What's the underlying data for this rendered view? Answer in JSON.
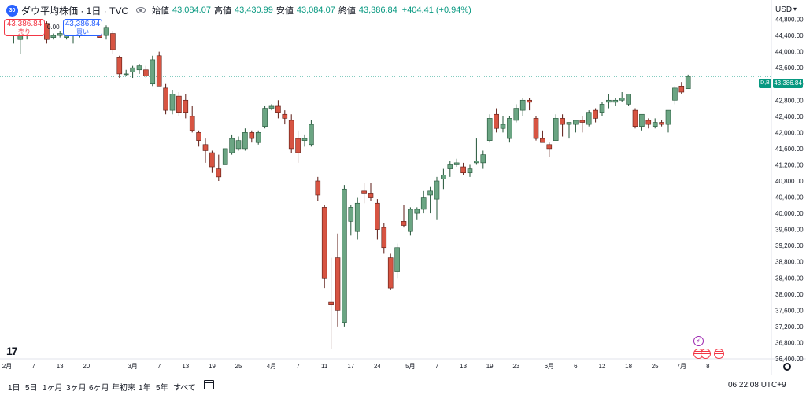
{
  "symbol": {
    "badge": "30",
    "title": "ダウ平均株価 · 1日 · TVC",
    "open_label": "始値",
    "open_value": "43,084.07",
    "high_label": "高値",
    "high_value": "43,430.99",
    "low_label": "安値",
    "low_value": "43,084.07",
    "close_label": "終値",
    "close_value": "43,386.84",
    "change": "+404.41 (+0.94%)"
  },
  "trade": {
    "sell_price": "43,386.84",
    "sell_label": "売り",
    "spread": "0.00",
    "buy_price": "43,386.84",
    "buy_label": "買い"
  },
  "axis": {
    "currency": "USD",
    "currency_chevron": "▾",
    "last_price": "43,386.84",
    "db_tag": "D,B"
  },
  "time_ranges": [
    "1日",
    "5日",
    "1ヶ月",
    "3ヶ月",
    "6ヶ月",
    "年初来",
    "1年",
    "5年",
    "すべて"
  ],
  "clock": "06:22:08 UTC+9",
  "logo": "17",
  "events": {
    "flash": "⚡"
  },
  "colors": {
    "up": "#6ba583",
    "down": "#d75442",
    "last_price_tag": "#089981",
    "grid_text": "#131722",
    "accent": "#2962ff"
  },
  "chart_data": {
    "type": "candlestick",
    "title": "ダウ平均株価",
    "xlabel": "",
    "ylabel": "",
    "ylim": [
      36400,
      45200
    ],
    "y_ticks": [
      36400,
      36800,
      37200,
      37600,
      38000,
      38400,
      38800,
      39200,
      39600,
      40000,
      40400,
      40800,
      41200,
      41600,
      42000,
      42400,
      42800,
      43200,
      43600,
      44000,
      44400,
      44800
    ],
    "y_tick_labels": [
      "36,400.00",
      "36,800.00",
      "37,200.00",
      "37,600.00",
      "38,000.00",
      "38,400.00",
      "38,800.00",
      "39,200.00",
      "39,600.00",
      "40,000.00",
      "40,400.00",
      "40,800.00",
      "41,200.00",
      "41,600.00",
      "42,000.00",
      "42,400.00",
      "42,800.00",
      "43,200.00",
      "43,600.00",
      "44,000.00",
      "44,400.00",
      "44,800.00"
    ],
    "x_labels": [
      {
        "label": "2月",
        "index": 0
      },
      {
        "label": "7",
        "index": 4
      },
      {
        "label": "13",
        "index": 8
      },
      {
        "label": "20",
        "index": 12
      },
      {
        "label": "3月",
        "index": 19
      },
      {
        "label": "7",
        "index": 23
      },
      {
        "label": "13",
        "index": 27
      },
      {
        "label": "19",
        "index": 31
      },
      {
        "label": "25",
        "index": 35
      },
      {
        "label": "4月",
        "index": 40
      },
      {
        "label": "7",
        "index": 44
      },
      {
        "label": "11",
        "index": 48
      },
      {
        "label": "17",
        "index": 52
      },
      {
        "label": "24",
        "index": 56
      },
      {
        "label": "5月",
        "index": 61
      },
      {
        "label": "7",
        "index": 65
      },
      {
        "label": "13",
        "index": 69
      },
      {
        "label": "19",
        "index": 73
      },
      {
        "label": "23",
        "index": 77
      },
      {
        "label": "6月",
        "index": 82
      },
      {
        "label": "6",
        "index": 86
      },
      {
        "label": "12",
        "index": 90
      },
      {
        "label": "18",
        "index": 94
      },
      {
        "label": "25",
        "index": 98
      },
      {
        "label": "7月",
        "index": 102
      },
      {
        "label": "8",
        "index": 106
      }
    ],
    "last_price": 43386.84,
    "candles": [
      {
        "o": 44550,
        "h": 44700,
        "l": 44400,
        "c": 44650
      },
      {
        "o": 44500,
        "h": 44600,
        "l": 44200,
        "c": 44600
      },
      {
        "o": 44300,
        "h": 44500,
        "l": 43950,
        "c": 44400
      },
      {
        "o": 44400,
        "h": 44650,
        "l": 44300,
        "c": 44500
      },
      {
        "o": 44550,
        "h": 44800,
        "l": 44450,
        "c": 44600
      },
      {
        "o": 44450,
        "h": 44700,
        "l": 44400,
        "c": 44700
      },
      {
        "o": 44700,
        "h": 44750,
        "l": 44200,
        "c": 44300
      },
      {
        "o": 44350,
        "h": 44450,
        "l": 44300,
        "c": 44400
      },
      {
        "o": 44400,
        "h": 44500,
        "l": 44350,
        "c": 44450
      },
      {
        "o": 44350,
        "h": 44600,
        "l": 44300,
        "c": 44550
      },
      {
        "o": 44450,
        "h": 44450,
        "l": 44200,
        "c": 44450
      },
      {
        "o": 44400,
        "h": 44700,
        "l": 44350,
        "c": 44600
      },
      {
        "o": 44550,
        "h": 44650,
        "l": 44400,
        "c": 44650
      },
      {
        "o": 44600,
        "h": 44650,
        "l": 44450,
        "c": 44550
      },
      {
        "o": 44650,
        "h": 44750,
        "l": 44350,
        "c": 44350
      },
      {
        "o": 44400,
        "h": 44650,
        "l": 44300,
        "c": 44600
      },
      {
        "o": 44450,
        "h": 44500,
        "l": 43950,
        "c": 44050
      },
      {
        "o": 43850,
        "h": 43900,
        "l": 43350,
        "c": 43450
      },
      {
        "o": 43450,
        "h": 43550,
        "l": 43400,
        "c": 43450
      },
      {
        "o": 43500,
        "h": 43650,
        "l": 43350,
        "c": 43600
      },
      {
        "o": 43550,
        "h": 43700,
        "l": 43450,
        "c": 43650
      },
      {
        "o": 43550,
        "h": 43650,
        "l": 43350,
        "c": 43400
      },
      {
        "o": 43200,
        "h": 43900,
        "l": 43150,
        "c": 43800
      },
      {
        "o": 43900,
        "h": 44000,
        "l": 43200,
        "c": 43150
      },
      {
        "o": 43100,
        "h": 43200,
        "l": 42450,
        "c": 42550
      },
      {
        "o": 42550,
        "h": 43050,
        "l": 42450,
        "c": 42950
      },
      {
        "o": 42900,
        "h": 43000,
        "l": 42400,
        "c": 42500
      },
      {
        "o": 42800,
        "h": 42950,
        "l": 42350,
        "c": 42500
      },
      {
        "o": 42400,
        "h": 42650,
        "l": 42000,
        "c": 42050
      },
      {
        "o": 42000,
        "h": 42050,
        "l": 41650,
        "c": 41800
      },
      {
        "o": 41700,
        "h": 41850,
        "l": 41250,
        "c": 41550
      },
      {
        "o": 41500,
        "h": 41550,
        "l": 41000,
        "c": 41150
      },
      {
        "o": 41100,
        "h": 41450,
        "l": 40800,
        "c": 40900
      },
      {
        "o": 41200,
        "h": 41600,
        "l": 41200,
        "c": 41600
      },
      {
        "o": 41500,
        "h": 41950,
        "l": 41450,
        "c": 41850
      },
      {
        "o": 41600,
        "h": 41900,
        "l": 41550,
        "c": 41800
      },
      {
        "o": 41600,
        "h": 42100,
        "l": 41550,
        "c": 42000
      },
      {
        "o": 42000,
        "h": 42050,
        "l": 41750,
        "c": 41850
      },
      {
        "o": 41750,
        "h": 42050,
        "l": 41700,
        "c": 42000
      },
      {
        "o": 42150,
        "h": 42650,
        "l": 42100,
        "c": 42600
      },
      {
        "o": 42600,
        "h": 42700,
        "l": 42550,
        "c": 42650
      },
      {
        "o": 42650,
        "h": 42800,
        "l": 42350,
        "c": 42500
      },
      {
        "o": 42450,
        "h": 42550,
        "l": 42200,
        "c": 42350
      },
      {
        "o": 42300,
        "h": 42450,
        "l": 41500,
        "c": 41600
      },
      {
        "o": 41850,
        "h": 42050,
        "l": 41250,
        "c": 41500
      },
      {
        "o": 41800,
        "h": 41950,
        "l": 41650,
        "c": 41850
      },
      {
        "o": 41700,
        "h": 42300,
        "l": 41650,
        "c": 42200
      },
      {
        "o": 40800,
        "h": 40900,
        "l": 40300,
        "c": 40450
      },
      {
        "o": 40150,
        "h": 40200,
        "l": 38150,
        "c": 38400
      },
      {
        "o": 37800,
        "h": 38900,
        "l": 36650,
        "c": 37750
      },
      {
        "o": 38900,
        "h": 39500,
        "l": 37200,
        "c": 37600
      },
      {
        "o": 37300,
        "h": 40700,
        "l": 37200,
        "c": 40600
      },
      {
        "o": 39800,
        "h": 40200,
        "l": 39450,
        "c": 40150
      },
      {
        "o": 39550,
        "h": 40400,
        "l": 39350,
        "c": 40250
      },
      {
        "o": 40550,
        "h": 40750,
        "l": 40250,
        "c": 40500
      },
      {
        "o": 40500,
        "h": 40750,
        "l": 40300,
        "c": 40400
      },
      {
        "o": 40250,
        "h": 40350,
        "l": 39350,
        "c": 39600
      },
      {
        "o": 39650,
        "h": 39750,
        "l": 39000,
        "c": 39150
      },
      {
        "o": 38900,
        "h": 39000,
        "l": 38100,
        "c": 38150
      },
      {
        "o": 38550,
        "h": 39250,
        "l": 38400,
        "c": 39150
      },
      {
        "o": 39800,
        "h": 40200,
        "l": 39650,
        "c": 39700
      },
      {
        "o": 39550,
        "h": 40150,
        "l": 39450,
        "c": 40100
      },
      {
        "o": 40000,
        "h": 40150,
        "l": 39850,
        "c": 40100
      },
      {
        "o": 40100,
        "h": 40550,
        "l": 40000,
        "c": 40400
      },
      {
        "o": 40450,
        "h": 40650,
        "l": 40000,
        "c": 40550
      },
      {
        "o": 40350,
        "h": 40900,
        "l": 39850,
        "c": 40800
      },
      {
        "o": 40850,
        "h": 41100,
        "l": 40600,
        "c": 40950
      },
      {
        "o": 41100,
        "h": 41300,
        "l": 40900,
        "c": 41200
      },
      {
        "o": 41200,
        "h": 41350,
        "l": 41150,
        "c": 41250
      },
      {
        "o": 41150,
        "h": 41250,
        "l": 40950,
        "c": 41000
      },
      {
        "o": 41000,
        "h": 41200,
        "l": 40900,
        "c": 41100
      },
      {
        "o": 41250,
        "h": 41850,
        "l": 41200,
        "c": 41300
      },
      {
        "o": 41250,
        "h": 41550,
        "l": 41100,
        "c": 41450
      },
      {
        "o": 41800,
        "h": 42450,
        "l": 41750,
        "c": 42350
      },
      {
        "o": 42450,
        "h": 42600,
        "l": 42000,
        "c": 42100
      },
      {
        "o": 42100,
        "h": 42400,
        "l": 42000,
        "c": 42200
      },
      {
        "o": 41850,
        "h": 42400,
        "l": 41750,
        "c": 42350
      },
      {
        "o": 42300,
        "h": 42700,
        "l": 42250,
        "c": 42600
      },
      {
        "o": 42550,
        "h": 42850,
        "l": 42400,
        "c": 42800
      },
      {
        "o": 42800,
        "h": 42850,
        "l": 42550,
        "c": 42750
      },
      {
        "o": 42350,
        "h": 42400,
        "l": 41800,
        "c": 41850
      },
      {
        "o": 41850,
        "h": 42050,
        "l": 41750,
        "c": 41750
      },
      {
        "o": 41700,
        "h": 41750,
        "l": 41400,
        "c": 41600
      },
      {
        "o": 41800,
        "h": 42450,
        "l": 41800,
        "c": 42350
      },
      {
        "o": 42350,
        "h": 42450,
        "l": 41900,
        "c": 42200
      },
      {
        "o": 42200,
        "h": 42250,
        "l": 41850,
        "c": 42250
      },
      {
        "o": 42200,
        "h": 42300,
        "l": 42000,
        "c": 42300
      },
      {
        "o": 42300,
        "h": 42400,
        "l": 42000,
        "c": 42250
      },
      {
        "o": 42200,
        "h": 42550,
        "l": 42150,
        "c": 42500
      },
      {
        "o": 42550,
        "h": 42600,
        "l": 42250,
        "c": 42350
      },
      {
        "o": 42500,
        "h": 42750,
        "l": 42400,
        "c": 42700
      },
      {
        "o": 42750,
        "h": 42950,
        "l": 42600,
        "c": 42800
      },
      {
        "o": 42750,
        "h": 42850,
        "l": 42650,
        "c": 42800
      },
      {
        "o": 42800,
        "h": 43000,
        "l": 42750,
        "c": 42850
      },
      {
        "o": 42700,
        "h": 42950,
        "l": 42650,
        "c": 42950
      },
      {
        "o": 42550,
        "h": 42600,
        "l": 42100,
        "c": 42150
      },
      {
        "o": 42150,
        "h": 42450,
        "l": 42050,
        "c": 42450
      },
      {
        "o": 42300,
        "h": 42350,
        "l": 42100,
        "c": 42200
      },
      {
        "o": 42150,
        "h": 42350,
        "l": 42100,
        "c": 42250
      },
      {
        "o": 42250,
        "h": 42300,
        "l": 42150,
        "c": 42200
      },
      {
        "o": 42200,
        "h": 42550,
        "l": 42000,
        "c": 42550
      },
      {
        "o": 42800,
        "h": 43150,
        "l": 42700,
        "c": 43100
      },
      {
        "o": 43150,
        "h": 43250,
        "l": 42950,
        "c": 43000
      },
      {
        "o": 43084.07,
        "h": 43430.99,
        "l": 43084.07,
        "c": 43386.84
      }
    ]
  }
}
